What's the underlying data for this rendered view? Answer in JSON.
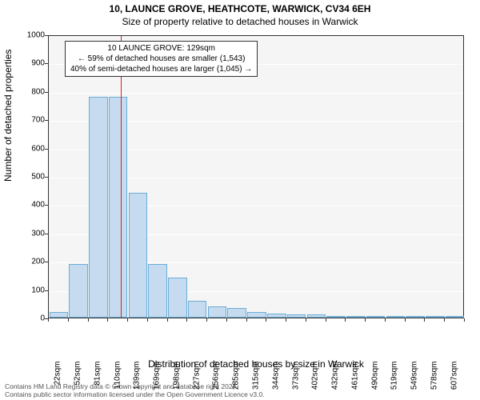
{
  "title_line1": "10, LAUNCE GROVE, HEATHCOTE, WARWICK, CV34 6EH",
  "title_line2": "Size of property relative to detached houses in Warwick",
  "chart": {
    "type": "histogram",
    "y_label": "Number of detached properties",
    "x_label": "Distribution of detached houses by size in Warwick",
    "ylim": [
      0,
      1000
    ],
    "ytick_step": 100,
    "x_tick_labels": [
      "22sqm",
      "52sqm",
      "81sqm",
      "110sqm",
      "139sqm",
      "169sqm",
      "198sqm",
      "227sqm",
      "256sqm",
      "285sqm",
      "315sqm",
      "344sqm",
      "373sqm",
      "402sqm",
      "432sqm",
      "461sqm",
      "490sqm",
      "519sqm",
      "549sqm",
      "578sqm",
      "607sqm"
    ],
    "bar_values": [
      20,
      190,
      780,
      780,
      440,
      190,
      140,
      60,
      40,
      35,
      20,
      15,
      12,
      10,
      6,
      4,
      3,
      2,
      2,
      1,
      1
    ],
    "bar_fill": "#c6dbef",
    "bar_border": "#6baed6",
    "plot_background": "#f5f5f5",
    "grid_color": "#ffffff",
    "reference_bin_index": 3,
    "reference_color": "#e41a1c",
    "annotation": {
      "line1": "10 LAUNCE GROVE: 129sqm",
      "line2": "← 59% of detached houses are smaller (1,543)",
      "line3": "40% of semi-detached houses are larger (1,045) →"
    }
  },
  "footer": {
    "line1": "Contains HM Land Registry data © Crown copyright and database right 2024.",
    "line2": "Contains public sector information licensed under the Open Government Licence v3.0."
  }
}
